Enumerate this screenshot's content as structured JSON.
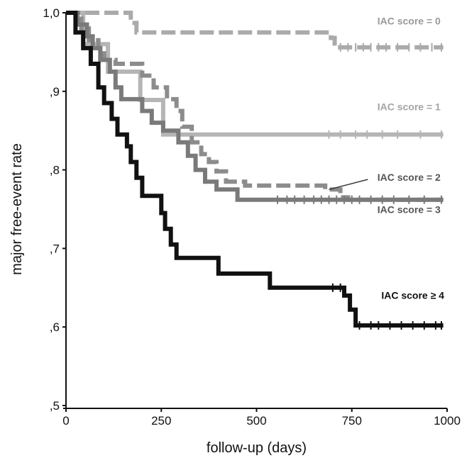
{
  "chart_data": {
    "type": "line",
    "subtype": "kaplan-meier step curves",
    "xlabel": "follow-up (days)",
    "ylabel": "major free-event rate",
    "xlim": [
      0,
      1000
    ],
    "ylim": [
      0.5,
      1.0
    ],
    "x_ticks": [
      0,
      250,
      500,
      750,
      1000
    ],
    "x_tick_labels": [
      "0",
      "250",
      "500",
      "750",
      "1000"
    ],
    "y_ticks": [
      0.5,
      0.6,
      0.7,
      0.8,
      0.9,
      1.0
    ],
    "y_tick_labels": [
      ",5",
      ",6",
      ",7",
      ",8",
      ",9",
      "1,0"
    ],
    "grid": false,
    "legend": "none (series labeled inline)",
    "series": [
      {
        "name": "IAC score = 0",
        "color": "#aaaaaa",
        "dashed": true,
        "label_color": "#9a9a9a",
        "points": [
          [
            0,
            1.0
          ],
          [
            170,
            1.0
          ],
          [
            170,
            0.987
          ],
          [
            185,
            0.987
          ],
          [
            185,
            0.975
          ],
          [
            695,
            0.975
          ],
          [
            695,
            0.968
          ],
          [
            705,
            0.968
          ],
          [
            705,
            0.956
          ],
          [
            990,
            0.956
          ]
        ],
        "censor_x": [
          720,
          740,
          760,
          780,
          800,
          820,
          840,
          870,
          900,
          930,
          960,
          985
        ]
      },
      {
        "name": "IAC score = 1",
        "color": "#b5b5b5",
        "dashed": false,
        "label_color": "#a5a5a5",
        "points": [
          [
            0,
            1.0
          ],
          [
            45,
            1.0
          ],
          [
            45,
            0.96
          ],
          [
            110,
            0.96
          ],
          [
            110,
            0.925
          ],
          [
            195,
            0.925
          ],
          [
            195,
            0.889
          ],
          [
            255,
            0.889
          ],
          [
            255,
            0.845
          ],
          [
            990,
            0.845
          ]
        ],
        "censor_x": [
          690,
          720,
          760,
          790,
          830,
          870,
          930,
          985
        ]
      },
      {
        "name": "IAC score = 2",
        "color": "#8c8c8c",
        "dashed": true,
        "label_color": "#555555",
        "points": [
          [
            0,
            1.0
          ],
          [
            40,
            1.0
          ],
          [
            40,
            0.98
          ],
          [
            60,
            0.98
          ],
          [
            60,
            0.965
          ],
          [
            85,
            0.965
          ],
          [
            85,
            0.955
          ],
          [
            100,
            0.955
          ],
          [
            100,
            0.94
          ],
          [
            130,
            0.94
          ],
          [
            130,
            0.935
          ],
          [
            200,
            0.935
          ],
          [
            200,
            0.92
          ],
          [
            230,
            0.92
          ],
          [
            230,
            0.905
          ],
          [
            265,
            0.905
          ],
          [
            265,
            0.89
          ],
          [
            290,
            0.89
          ],
          [
            290,
            0.875
          ],
          [
            305,
            0.875
          ],
          [
            305,
            0.855
          ],
          [
            330,
            0.855
          ],
          [
            330,
            0.835
          ],
          [
            355,
            0.835
          ],
          [
            355,
            0.82
          ],
          [
            375,
            0.82
          ],
          [
            375,
            0.81
          ],
          [
            395,
            0.81
          ],
          [
            395,
            0.798
          ],
          [
            420,
            0.798
          ],
          [
            420,
            0.785
          ],
          [
            470,
            0.785
          ],
          [
            470,
            0.78
          ],
          [
            680,
            0.78
          ],
          [
            680,
            0.775
          ],
          [
            720,
            0.775
          ],
          [
            720,
            0.765
          ],
          [
            740,
            0.765
          ],
          [
            740,
            0.762
          ],
          [
            990,
            0.762
          ]
        ],
        "censor_x": []
      },
      {
        "name": "IAC score = 3",
        "color": "#7a7a7a",
        "dashed": false,
        "label_color": "#555555",
        "points": [
          [
            0,
            1.0
          ],
          [
            30,
            1.0
          ],
          [
            30,
            0.985
          ],
          [
            55,
            0.985
          ],
          [
            55,
            0.97
          ],
          [
            70,
            0.97
          ],
          [
            70,
            0.955
          ],
          [
            90,
            0.955
          ],
          [
            90,
            0.94
          ],
          [
            115,
            0.94
          ],
          [
            115,
            0.925
          ],
          [
            130,
            0.925
          ],
          [
            130,
            0.905
          ],
          [
            145,
            0.905
          ],
          [
            145,
            0.89
          ],
          [
            200,
            0.89
          ],
          [
            200,
            0.875
          ],
          [
            225,
            0.875
          ],
          [
            225,
            0.86
          ],
          [
            255,
            0.86
          ],
          [
            255,
            0.85
          ],
          [
            295,
            0.85
          ],
          [
            295,
            0.835
          ],
          [
            320,
            0.835
          ],
          [
            320,
            0.818
          ],
          [
            340,
            0.818
          ],
          [
            340,
            0.8
          ],
          [
            365,
            0.8
          ],
          [
            365,
            0.785
          ],
          [
            395,
            0.785
          ],
          [
            395,
            0.775
          ],
          [
            450,
            0.775
          ],
          [
            450,
            0.762
          ],
          [
            990,
            0.762
          ]
        ],
        "censor_x": [
          555,
          580,
          600,
          625,
          650,
          670,
          690,
          710,
          730,
          750,
          770,
          800,
          830,
          860,
          900,
          940,
          985
        ]
      },
      {
        "name": "IAC score ≥ 4",
        "color": "#111111",
        "dashed": false,
        "label_color": "#111111",
        "points": [
          [
            0,
            1.0
          ],
          [
            25,
            1.0
          ],
          [
            25,
            0.975
          ],
          [
            45,
            0.975
          ],
          [
            45,
            0.955
          ],
          [
            65,
            0.955
          ],
          [
            65,
            0.935
          ],
          [
            85,
            0.935
          ],
          [
            85,
            0.905
          ],
          [
            100,
            0.905
          ],
          [
            100,
            0.885
          ],
          [
            120,
            0.885
          ],
          [
            120,
            0.865
          ],
          [
            135,
            0.865
          ],
          [
            135,
            0.845
          ],
          [
            160,
            0.845
          ],
          [
            160,
            0.83
          ],
          [
            170,
            0.83
          ],
          [
            170,
            0.81
          ],
          [
            185,
            0.81
          ],
          [
            185,
            0.79
          ],
          [
            200,
            0.79
          ],
          [
            200,
            0.767
          ],
          [
            250,
            0.767
          ],
          [
            250,
            0.745
          ],
          [
            260,
            0.745
          ],
          [
            260,
            0.725
          ],
          [
            275,
            0.725
          ],
          [
            275,
            0.705
          ],
          [
            290,
            0.705
          ],
          [
            290,
            0.688
          ],
          [
            400,
            0.688
          ],
          [
            400,
            0.668
          ],
          [
            535,
            0.668
          ],
          [
            535,
            0.65
          ],
          [
            730,
            0.65
          ],
          [
            730,
            0.64
          ],
          [
            745,
            0.64
          ],
          [
            745,
            0.622
          ],
          [
            760,
            0.622
          ],
          [
            760,
            0.602
          ],
          [
            990,
            0.602
          ]
        ],
        "censor_x": [
          700,
          720,
          770,
          800,
          820,
          850,
          880,
          910,
          940,
          970,
          985
        ]
      }
    ],
    "annotations": [
      {
        "text": "IAC score = 0",
        "series": 0,
        "x": 900,
        "y": 0.985
      },
      {
        "text": "IAC score = 1",
        "series": 1,
        "x": 900,
        "y": 0.876
      },
      {
        "text": "IAC score = 2",
        "series": 2,
        "x": 900,
        "y": 0.786,
        "pointer_to": [
          690,
          0.775
        ]
      },
      {
        "text": "IAC score = 3",
        "series": 3,
        "x": 900,
        "y": 0.745
      },
      {
        "text": "IAC score ≥ 4",
        "series": 4,
        "x": 910,
        "y": 0.636
      }
    ]
  }
}
